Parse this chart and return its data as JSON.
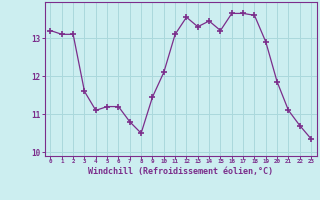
{
  "x": [
    0,
    1,
    2,
    3,
    4,
    5,
    6,
    7,
    8,
    9,
    10,
    11,
    12,
    13,
    14,
    15,
    16,
    17,
    18,
    19,
    20,
    21,
    22,
    23
  ],
  "y": [
    13.2,
    13.1,
    13.1,
    11.6,
    11.1,
    11.2,
    11.2,
    10.8,
    10.5,
    11.45,
    12.1,
    13.1,
    13.55,
    13.3,
    13.45,
    13.2,
    13.65,
    13.65,
    13.6,
    12.9,
    11.85,
    11.1,
    10.7,
    10.35
  ],
  "line_color": "#7b2d8b",
  "marker_color": "#7b2d8b",
  "bg_color": "#cceef0",
  "grid_color": "#aad8dc",
  "axis_color": "#7b2d8b",
  "tick_color": "#7b2d8b",
  "xlabel": "Windchill (Refroidissement éolien,°C)",
  "ylim": [
    9.9,
    13.95
  ],
  "yticks": [
    10,
    11,
    12,
    13
  ],
  "xticks": [
    0,
    1,
    2,
    3,
    4,
    5,
    6,
    7,
    8,
    9,
    10,
    11,
    12,
    13,
    14,
    15,
    16,
    17,
    18,
    19,
    20,
    21,
    22,
    23
  ]
}
